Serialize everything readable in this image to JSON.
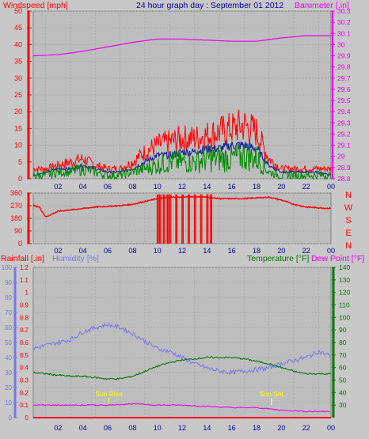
{
  "colors": {
    "background": "#c8c8c8",
    "panel": "#bebebe",
    "wind": "#ff0000",
    "wind_avg": "#1a2a9a",
    "wind_gust_alt": "#008800",
    "barometer": "#ee00ee",
    "direction": "#ff0000",
    "rain": "#ff0000",
    "humidity": "#7777ee",
    "temperature": "#007700",
    "dewpoint": "#ee00ee",
    "sun": "#ffff00",
    "title": "#0000aa",
    "grid": "#a9a9a9"
  },
  "chart_data": [
    {
      "type": "line",
      "title": "24 hour graph day : September 01 2012",
      "ylabel_left": "Windspeed [mph]",
      "ylabel_right": "Barometer [.in]",
      "x_ticks": [
        "02",
        "04",
        "06",
        "08",
        "10",
        "12",
        "14",
        "16",
        "18",
        "20",
        "22",
        "00"
      ],
      "ylim_left": [
        0,
        50
      ],
      "yticks_left": [
        "0",
        "5",
        "10",
        "15",
        "20",
        "25",
        "30",
        "35",
        "40",
        "45",
        "50"
      ],
      "ylim_right": [
        28.8,
        30.3
      ],
      "yticks_right": [
        "28.8",
        "28.9",
        "29",
        "29.1",
        "29.2",
        "29.3",
        "29.4",
        "29.5",
        "29.6",
        "29.7",
        "29.8",
        "29.9",
        "30",
        "30.1",
        "30.2",
        "30.3"
      ],
      "series": [
        {
          "role": "gust",
          "x": [
            0,
            1,
            2,
            3,
            4,
            5,
            6,
            7,
            8,
            9,
            10,
            11,
            12,
            13,
            14,
            15,
            16,
            17,
            18,
            19,
            20,
            21,
            22,
            23,
            24
          ],
          "values": [
            3,
            3,
            4,
            5,
            6,
            4,
            3,
            3,
            5,
            8,
            10,
            11,
            12,
            12,
            13,
            14,
            15,
            16,
            14,
            6,
            3,
            3,
            3,
            3,
            3
          ]
        },
        {
          "role": "average",
          "x": [
            0,
            1,
            2,
            3,
            4,
            5,
            6,
            7,
            8,
            9,
            10,
            11,
            12,
            13,
            14,
            15,
            16,
            17,
            18,
            19,
            20,
            21,
            22,
            23,
            24
          ],
          "values": [
            1,
            2,
            3,
            3,
            4,
            3,
            2,
            2,
            3,
            5,
            7,
            7,
            8,
            8,
            9,
            9,
            10,
            10,
            9,
            4,
            2,
            2,
            2,
            2,
            1
          ]
        },
        {
          "role": "speed",
          "x": [
            0,
            1,
            2,
            3,
            4,
            5,
            6,
            7,
            8,
            9,
            10,
            11,
            12,
            13,
            14,
            15,
            16,
            17,
            18,
            19,
            20,
            21,
            22,
            23,
            24
          ],
          "values": [
            1,
            1,
            2,
            2,
            3,
            2,
            1,
            1,
            2,
            3,
            4,
            5,
            5,
            5,
            6,
            6,
            6,
            7,
            6,
            2,
            1,
            1,
            1,
            1,
            1
          ]
        },
        {
          "role": "barometer",
          "x": [
            0,
            2,
            4,
            6,
            8,
            10,
            12,
            14,
            16,
            18,
            20,
            22,
            24
          ],
          "values": [
            29.9,
            29.91,
            29.94,
            29.98,
            30.02,
            30.05,
            30.05,
            30.04,
            30.03,
            30.03,
            30.06,
            30.08,
            30.08
          ]
        }
      ]
    },
    {
      "type": "scatter",
      "ylabel_right": [
        "N",
        "W",
        "S",
        "E",
        "N"
      ],
      "x_ticks": [
        "02",
        "04",
        "06",
        "08",
        "10",
        "12",
        "14",
        "16",
        "18",
        "20",
        "22",
        "00"
      ],
      "ylim": [
        0,
        360
      ],
      "yticks": [
        "0",
        "90",
        "180",
        "270",
        "360"
      ],
      "series": [
        {
          "role": "wind-direction",
          "x": [
            0,
            0.5,
            1,
            2,
            3,
            4,
            5,
            6,
            7,
            8,
            9,
            10,
            11,
            12,
            13,
            14,
            15,
            16,
            17,
            18,
            19,
            20,
            21,
            22,
            23,
            24
          ],
          "values": [
            270,
            260,
            190,
            230,
            240,
            250,
            260,
            265,
            270,
            280,
            300,
            320,
            330,
            330,
            335,
            330,
            320,
            320,
            320,
            325,
            330,
            310,
            280,
            260,
            255,
            250
          ]
        },
        {
          "role": "direction-spikes",
          "x": [
            10.0,
            10.2,
            10.5,
            10.8,
            11.0,
            11.5,
            12.0,
            12.5,
            13.0,
            13.5,
            14.0,
            14.3
          ],
          "values": [
            0,
            0,
            0,
            0,
            0,
            0,
            0,
            0,
            0,
            0,
            0,
            0
          ]
        }
      ]
    },
    {
      "type": "line",
      "ylabel_left_outer": "Rainfall [.in]",
      "ylabel_left_inner": "Humidity [%]",
      "ylabel_right_inner": "Temperature [°F]",
      "ylabel_right_outer": "Dew Point [°F]",
      "x_ticks": [
        "02",
        "04",
        "06",
        "08",
        "10",
        "12",
        "14",
        "16",
        "18",
        "20",
        "22",
        "00"
      ],
      "ylim_rain": [
        0,
        1.2
      ],
      "yticks_rain": [
        "0",
        "0.1",
        "0.2",
        "0.3",
        "0.4",
        "0.5",
        "0.6",
        "0.7",
        "0.8",
        "0.9",
        "1",
        "1.1",
        "1.2"
      ],
      "ylim_humidity": [
        0,
        100
      ],
      "yticks_humidity": [
        "0",
        "10",
        "20",
        "30",
        "40",
        "50",
        "60",
        "70",
        "80",
        "90",
        "100"
      ],
      "ylim_temp": [
        20,
        140
      ],
      "yticks_temp": [
        "30",
        "40",
        "50",
        "60",
        "70",
        "80",
        "90",
        "100",
        "110",
        "120",
        "130",
        "140"
      ],
      "annotations": [
        "Sun Rise",
        "Sun Set"
      ],
      "series": [
        {
          "role": "humidity",
          "x": [
            0,
            1,
            2,
            3,
            4,
            5,
            6,
            7,
            8,
            9,
            10,
            11,
            12,
            13,
            14,
            15,
            16,
            17,
            18,
            19,
            20,
            21,
            22,
            23,
            24
          ],
          "values": [
            46,
            48,
            50,
            52,
            57,
            60,
            62,
            60,
            56,
            51,
            46,
            44,
            40,
            36,
            33,
            31,
            30,
            31,
            32,
            33,
            36,
            38,
            40,
            44,
            41
          ]
        },
        {
          "role": "temperature",
          "x": [
            0,
            1,
            2,
            3,
            4,
            5,
            6,
            7,
            8,
            9,
            10,
            11,
            12,
            13,
            14,
            15,
            16,
            17,
            18,
            19,
            20,
            21,
            22,
            23,
            24
          ],
          "values": [
            56,
            55,
            54,
            53,
            53,
            52,
            51,
            51,
            53,
            57,
            61,
            64,
            66,
            67,
            68,
            68,
            68,
            67,
            65,
            63,
            60,
            57,
            55,
            55,
            55
          ]
        },
        {
          "role": "dewpoint",
          "x": [
            0,
            2,
            4,
            6,
            8,
            10,
            12,
            14,
            16,
            18,
            20,
            22,
            24
          ],
          "values": [
            30,
            30,
            30,
            30,
            31,
            30,
            30,
            29,
            28,
            28,
            26,
            25,
            25
          ]
        },
        {
          "role": "rainfall",
          "x": [
            0,
            24
          ],
          "values": [
            0,
            0
          ]
        }
      ]
    }
  ]
}
